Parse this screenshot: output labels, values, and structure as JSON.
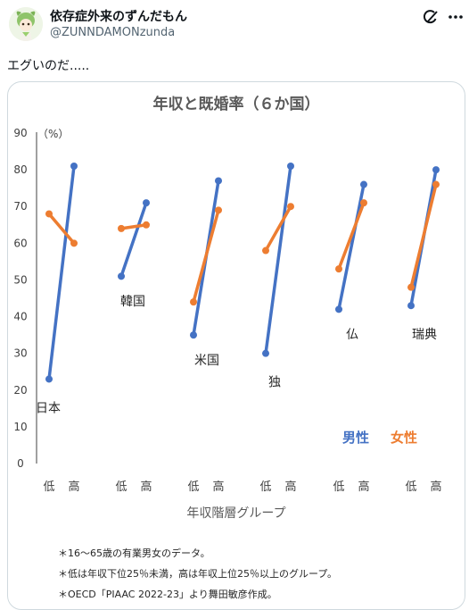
{
  "post": {
    "display_name": "依存症外来のずんだもん",
    "handle": "@ZUNNDAMONzunda",
    "text": "エグいのだ....."
  },
  "icons": [
    "grok-icon",
    "more-options-icon"
  ],
  "colors": {
    "male": "#4472c4",
    "female": "#ed7d31"
  },
  "chart_data": {
    "type": "line",
    "title": "年収と既婚率（６か国）",
    "ylabel": "（%）",
    "xlabel": "年収階層グループ",
    "ylim": [
      0,
      90
    ],
    "yticks": [
      "0",
      "10",
      "20",
      "30",
      "40",
      "50",
      "60",
      "70",
      "80",
      "90"
    ],
    "x_tick_labels": [
      "低",
      "高"
    ],
    "series": [
      {
        "name": "男性",
        "color": "#4472c4"
      },
      {
        "name": "女性",
        "color": "#ed7d31"
      }
    ],
    "groups": [
      {
        "label": "日本",
        "male": [
          23,
          81
        ],
        "female": [
          68,
          60
        ]
      },
      {
        "label": "韓国",
        "male": [
          51,
          71
        ],
        "female": [
          64,
          65
        ]
      },
      {
        "label": "米国",
        "male": [
          35,
          77
        ],
        "female": [
          44,
          69
        ]
      },
      {
        "label": "独",
        "male": [
          30,
          81
        ],
        "female": [
          58,
          70
        ]
      },
      {
        "label": "仏",
        "male": [
          42,
          76
        ],
        "female": [
          53,
          71
        ]
      },
      {
        "label": "瑞典",
        "male": [
          43,
          80
        ],
        "female": [
          48,
          76
        ]
      }
    ],
    "notes": [
      "＊16～65歳の有業男女のデータ。",
      "＊低は年収下位25％未満，高は年収上位25％以上のグループ。",
      "＊OECD「PIAAC 2022-23」より舞田敏彦作成。"
    ]
  }
}
